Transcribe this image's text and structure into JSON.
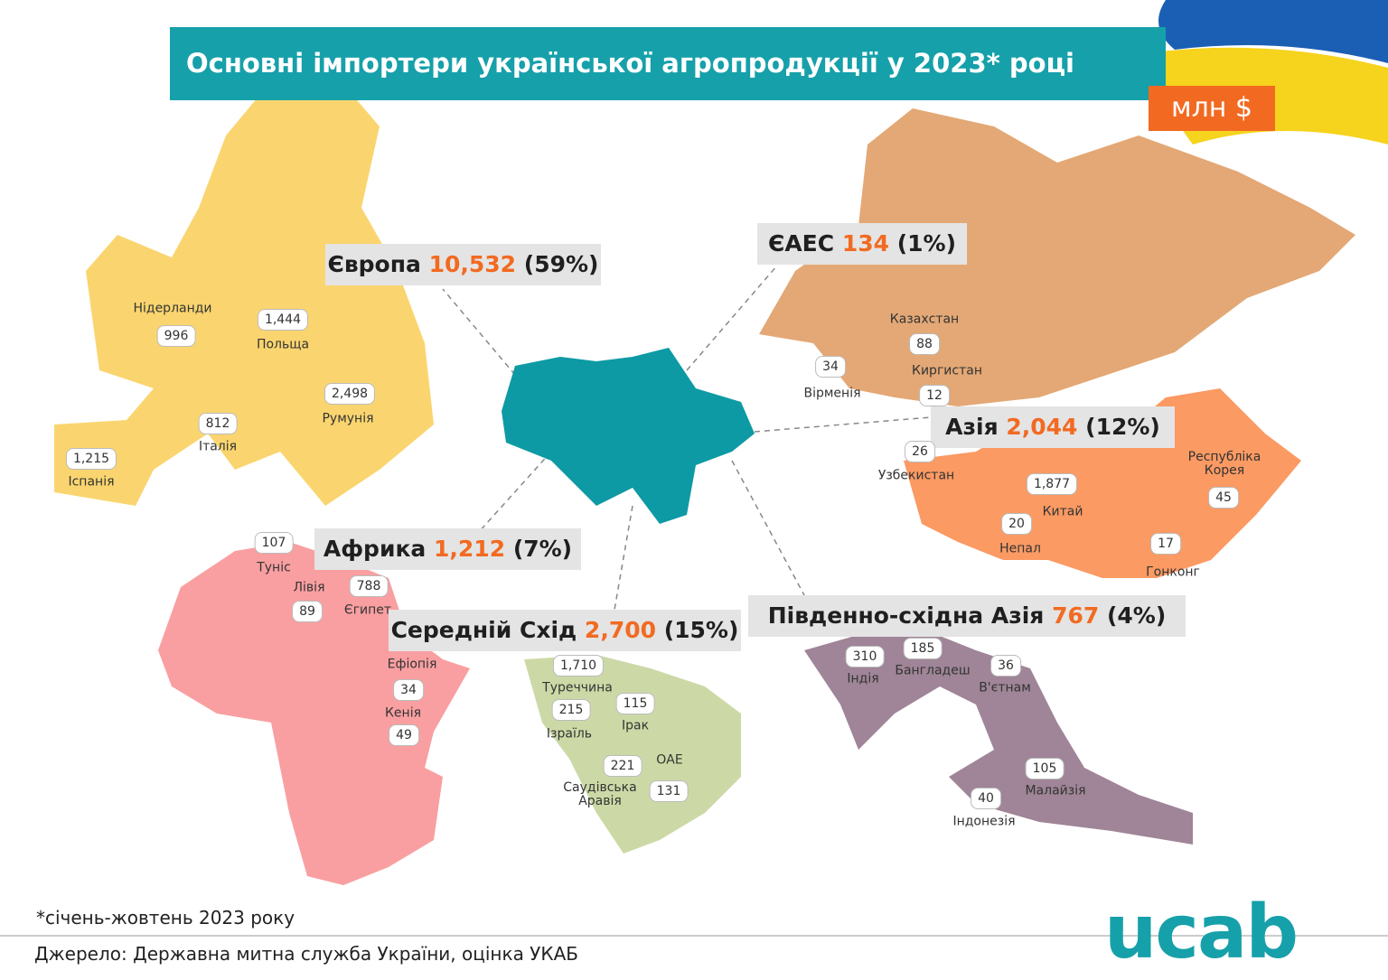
{
  "header": {
    "title": "Основні імпортери української агропродукції у 2023* році",
    "unit": "млн $"
  },
  "regions": [
    {
      "name": "Європа",
      "value": "10,532",
      "share": "(59%)",
      "countries": [
        {
          "name": "Нідерланди",
          "value": "996"
        },
        {
          "name": "Польща",
          "value": "1,444"
        },
        {
          "name": "Румунія",
          "value": "2,498"
        },
        {
          "name": "Італія",
          "value": "812"
        },
        {
          "name": "Іспанія",
          "value": "1,215"
        }
      ]
    },
    {
      "name": "ЄАЕС",
      "value": "134",
      "share": "(1%)",
      "countries": [
        {
          "name": "Казахстан",
          "value": "88"
        },
        {
          "name": "Вірменія",
          "value": "34"
        },
        {
          "name": "Киргистан",
          "value": "12"
        }
      ]
    },
    {
      "name": "Азія",
      "value": "2,044",
      "share": "(12%)",
      "countries": [
        {
          "name": "Узбекистан",
          "value": "26"
        },
        {
          "name": "Китай",
          "value": "1,877"
        },
        {
          "name": "Непал",
          "value": "20"
        },
        {
          "name": "Республіка Корея",
          "value": "45"
        },
        {
          "name": "Гонконг",
          "value": "17"
        }
      ]
    },
    {
      "name": "Африка",
      "value": "1,212",
      "share": "(7%)",
      "countries": [
        {
          "name": "Туніс",
          "value": "107"
        },
        {
          "name": "Лівія",
          "value": "89"
        },
        {
          "name": "Єгипет",
          "value": "788"
        },
        {
          "name": "Ефіопія",
          "value": "34"
        },
        {
          "name": "Кенія",
          "value": "49"
        }
      ]
    },
    {
      "name": "Середній Схід",
      "value": "2,700",
      "share": "(15%)",
      "countries": [
        {
          "name": "Туреччина",
          "value": "1,710"
        },
        {
          "name": "Ізраїль",
          "value": "215"
        },
        {
          "name": "Ірак",
          "value": "115"
        },
        {
          "name": "Саудівська Аравія",
          "value": "221"
        },
        {
          "name": "ОАЕ",
          "value": "131"
        }
      ]
    },
    {
      "name": "Південно-східна Азія",
      "value": "767",
      "share": "(4%)",
      "countries": [
        {
          "name": "Індія",
          "value": "310"
        },
        {
          "name": "Бангладеш",
          "value": "185"
        },
        {
          "name": "В'єтнам",
          "value": "36"
        },
        {
          "name": "Малайзія",
          "value": "105"
        },
        {
          "name": "Індонезія",
          "value": "40"
        }
      ]
    }
  ],
  "footnote": "*січень-жовтень 2023 року",
  "source": "Джерело: Державна митна служба України, оцінка УКАБ",
  "logo": "ucab"
}
